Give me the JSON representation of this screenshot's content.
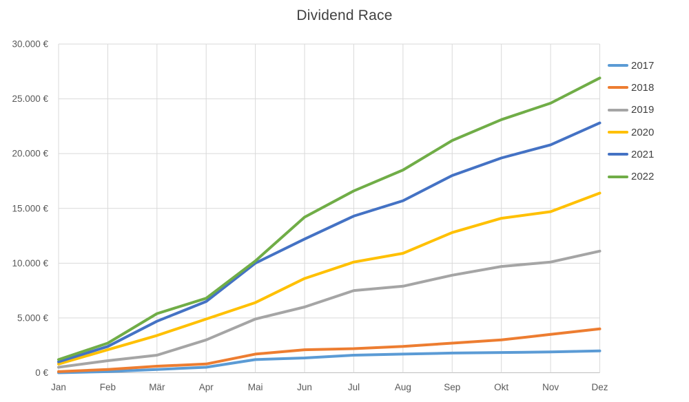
{
  "chart_data": {
    "type": "line",
    "title": "Dividend Race",
    "xlabel": "",
    "ylabel": "",
    "categories": [
      "Jan",
      "Feb",
      "Mär",
      "Apr",
      "Mai",
      "Jun",
      "Jul",
      "Aug",
      "Sep",
      "Okt",
      "Nov",
      "Dez"
    ],
    "y_axis": {
      "min": 0,
      "max": 30000,
      "step": 5000,
      "tick_labels": [
        "0 €",
        "5.000 €",
        "10.000 €",
        "15.000 €",
        "20.000 €",
        "25.000 €",
        "30.000 €"
      ]
    },
    "grid": "both",
    "legend_position": "right",
    "series": [
      {
        "name": "2017",
        "color": "#5B9BD5",
        "values": [
          0,
          100,
          300,
          500,
          1200,
          1350,
          1600,
          1700,
          1800,
          1850,
          1900,
          2000
        ]
      },
      {
        "name": "2018",
        "color": "#ED7D31",
        "values": [
          100,
          300,
          600,
          800,
          1700,
          2100,
          2200,
          2400,
          2700,
          3000,
          3500,
          4000
        ]
      },
      {
        "name": "2019",
        "color": "#A5A5A5",
        "values": [
          500,
          1100,
          1600,
          3000,
          4900,
          6000,
          7500,
          7900,
          8900,
          9700,
          10100,
          11100
        ]
      },
      {
        "name": "2020",
        "color": "#FFC000",
        "values": [
          800,
          2100,
          3400,
          4900,
          6400,
          8600,
          10100,
          10900,
          12800,
          14100,
          14700,
          16400
        ]
      },
      {
        "name": "2021",
        "color": "#4472C4",
        "values": [
          1000,
          2400,
          4700,
          6500,
          10000,
          12200,
          14300,
          15700,
          18000,
          19600,
          20800,
          22800
        ]
      },
      {
        "name": "2022",
        "color": "#70AD47",
        "values": [
          1200,
          2700,
          5400,
          6800,
          10200,
          14200,
          16600,
          18500,
          21200,
          23100,
          24600,
          26900
        ]
      }
    ],
    "style": {
      "gridline_color": "#D9D9D9",
      "axis_line_color": "#BFBFBF",
      "tick_label_color": "#595959",
      "title_color": "#404040",
      "line_width": 4
    }
  }
}
